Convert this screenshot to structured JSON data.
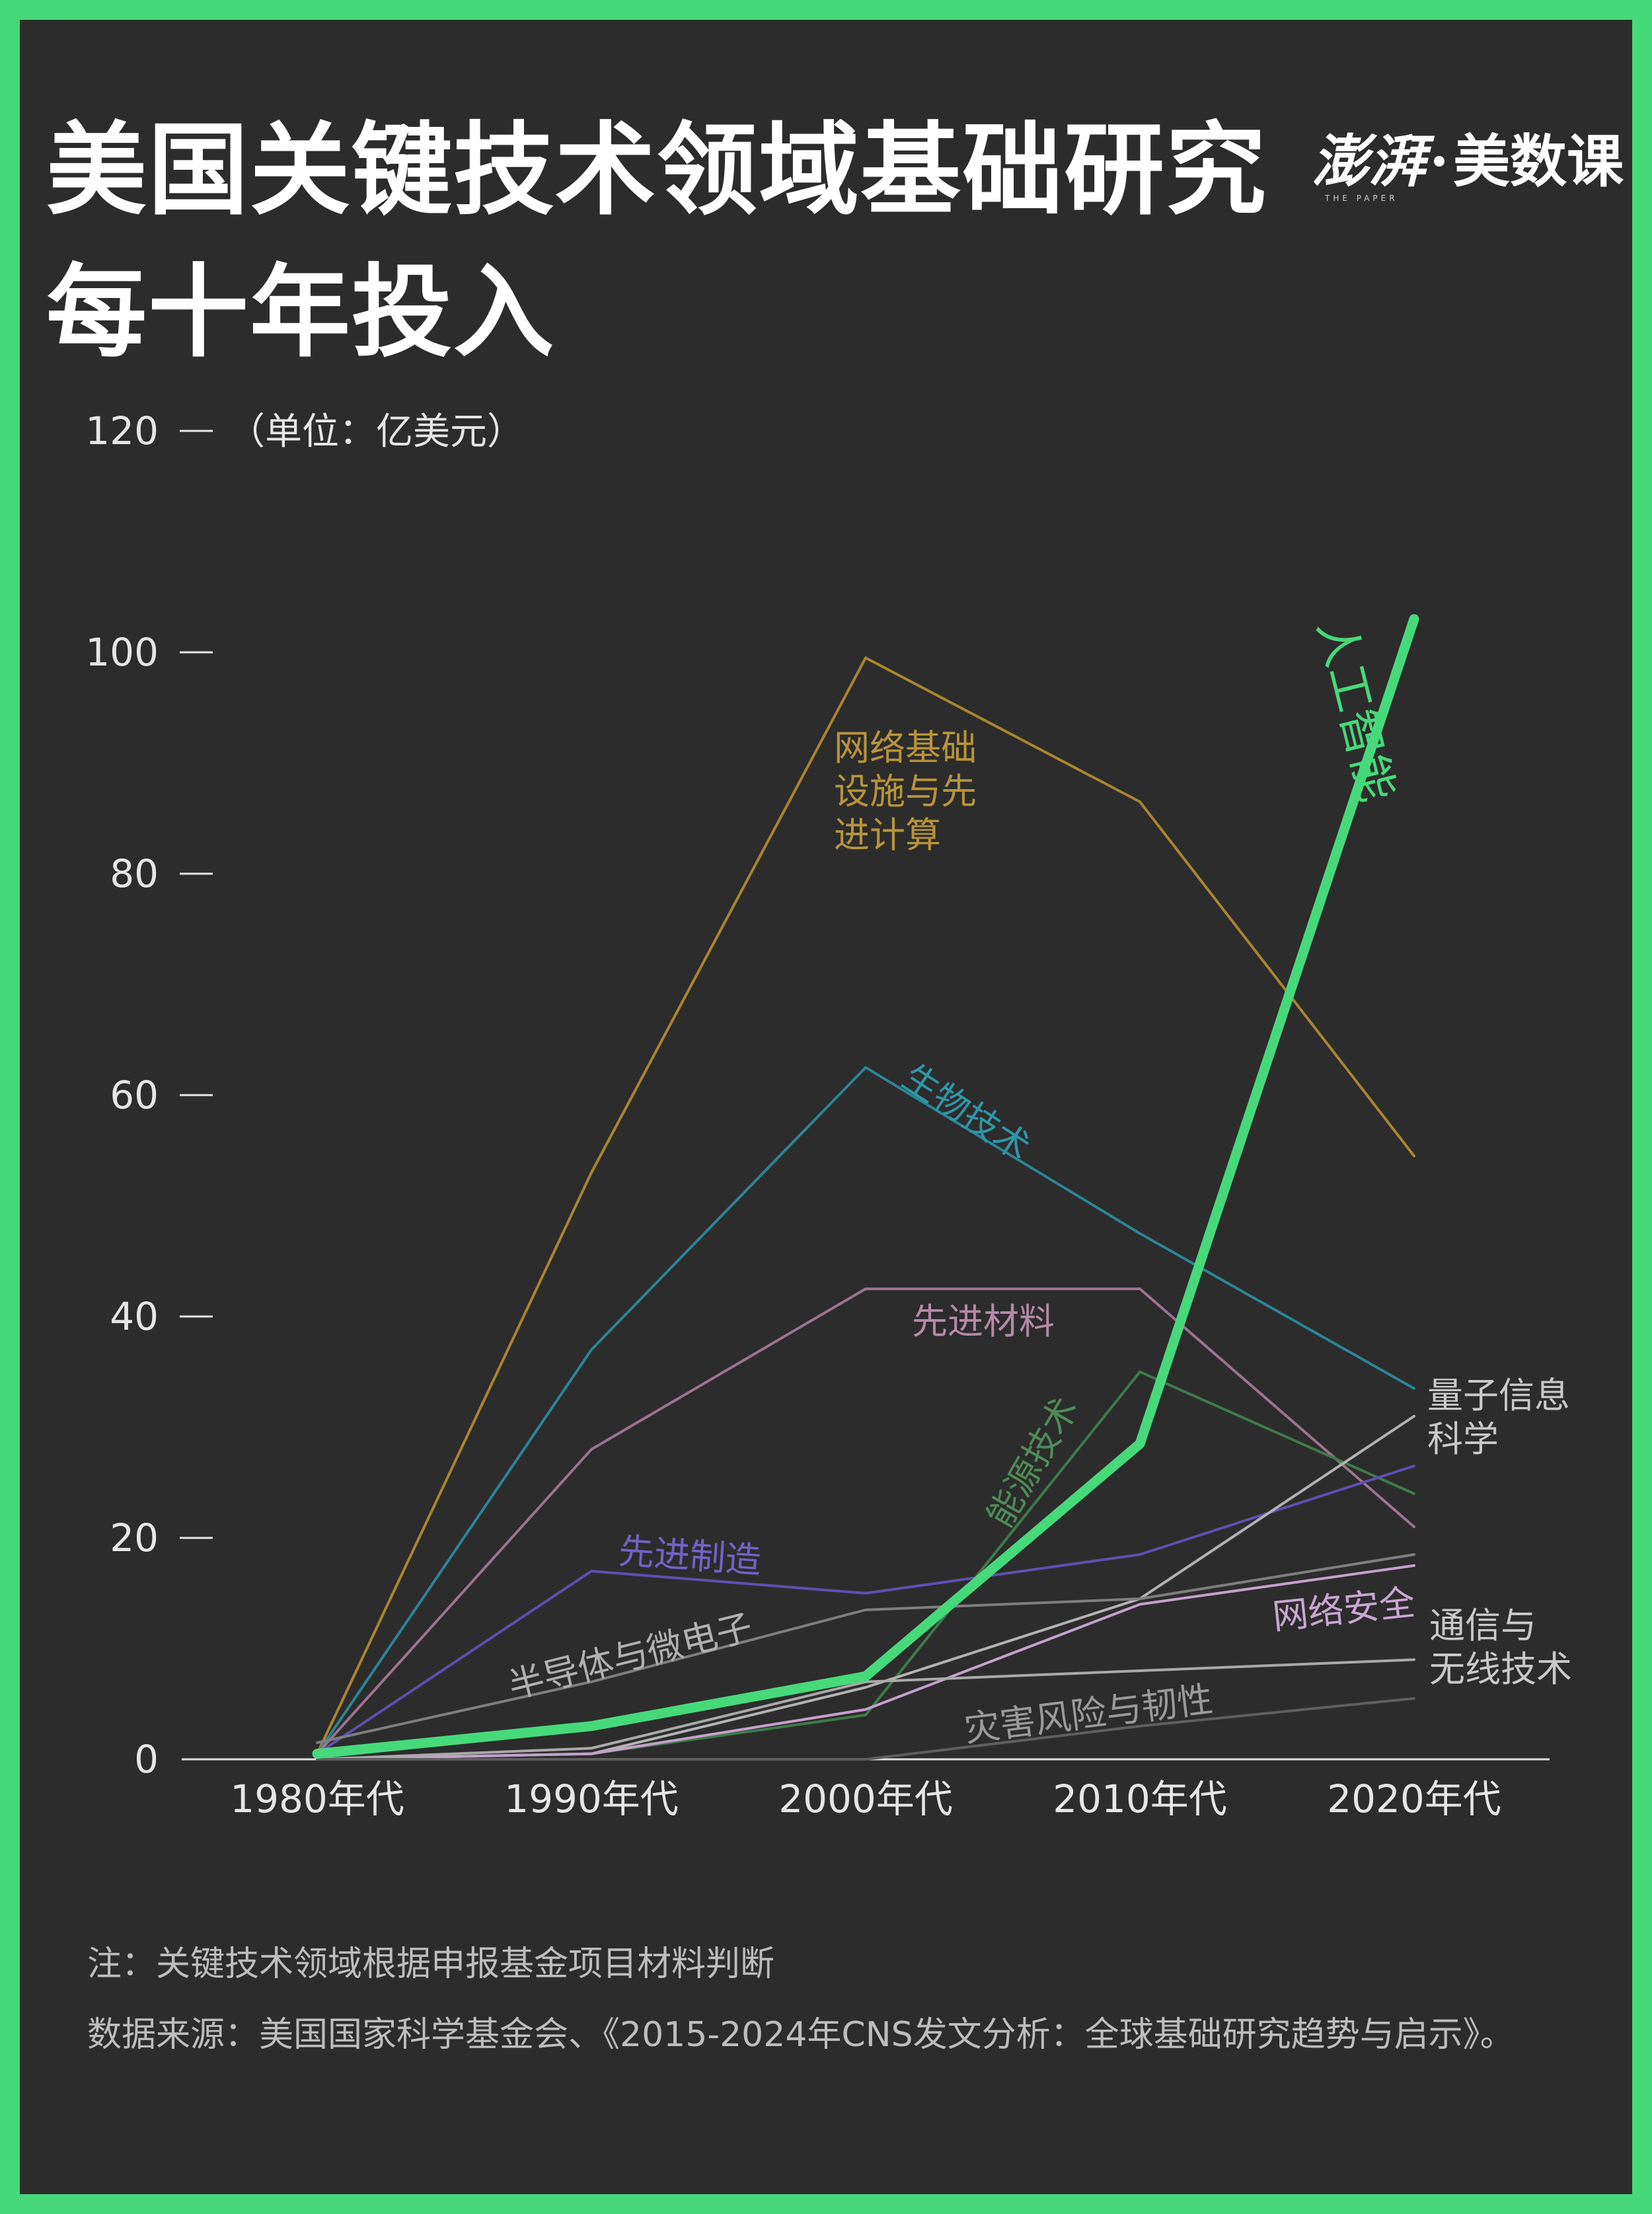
{
  "title_lines": [
    "美国关键技术领域基础研究",
    "每十年投入"
  ],
  "logo": {
    "main": "澎湃",
    "separator": "·",
    "sub": "美数课",
    "en": "THE PAPER"
  },
  "notes": {
    "note": "注：关键技术领域根据申报基金项目材料判断",
    "source": "数据来源：美国国家科学基金会、《2015-2024年CNS发文分析：全球基础研究趋势与启示》。"
  },
  "colors": {
    "background": "#2c2c2c",
    "border": "#46d97a",
    "text": "#ffffff",
    "axis": "#d9d9d9"
  },
  "chart_data": {
    "type": "line",
    "title": "美国关键技术领域基础研究每十年投入",
    "unit_label": "（单位：亿美元）",
    "categories": [
      "1980年代",
      "1990年代",
      "2000年代",
      "2010年代",
      "2020年代"
    ],
    "ylim": [
      0,
      120
    ],
    "yticks": [
      0,
      20,
      40,
      60,
      80,
      100,
      120
    ],
    "grid": false,
    "series": [
      {
        "name": "网络基础设施与先进计算",
        "label_lines": [
          "网络基础",
          "设施与先",
          "进计算"
        ],
        "color": "#a8862e",
        "width": 4,
        "values": [
          0.5,
          53,
          99.5,
          86.5,
          54.5
        ]
      },
      {
        "name": "生物技术",
        "label_lines": [
          "生物技术"
        ],
        "color": "#2a8595",
        "width": 4,
        "values": [
          0.5,
          37,
          62.5,
          47.5,
          33.5
        ]
      },
      {
        "name": "先进材料",
        "label_lines": [
          "先进材料"
        ],
        "color": "#9c7391",
        "width": 4,
        "values": [
          0.5,
          28,
          42.5,
          42.5,
          21
        ]
      },
      {
        "name": "能源技术",
        "label_lines": [
          "能源技术"
        ],
        "color": "#3f7a4a",
        "width": 4,
        "values": [
          0,
          0.5,
          4,
          35,
          24
        ]
      },
      {
        "name": "先进制造",
        "label_lines": [
          "先进制造"
        ],
        "color": "#5e4fb0",
        "width": 4,
        "values": [
          0.5,
          17,
          15,
          18.5,
          26.5
        ]
      },
      {
        "name": "量子信息科学",
        "label_lines": [
          "量子信息",
          "科学"
        ],
        "color": "#b3b3b3",
        "width": 4,
        "values": [
          0,
          0.5,
          6.5,
          14.5,
          31
        ]
      },
      {
        "name": "半导体与微电子",
        "label_lines": [
          "半导体与微电子"
        ],
        "color": "#7e7e7e",
        "width": 4,
        "values": [
          1.5,
          7,
          13.5,
          14.5,
          18.5
        ]
      },
      {
        "name": "网络安全",
        "label_lines": [
          "网络安全"
        ],
        "color": "#c4a1cb",
        "width": 4,
        "values": [
          0,
          0.5,
          4.5,
          14,
          17.5
        ]
      },
      {
        "name": "通信与无线技术",
        "label_lines": [
          "通信与",
          "无线技术"
        ],
        "color": "#a9a9a9",
        "width": 4,
        "values": [
          0,
          1,
          7,
          8,
          9
        ]
      },
      {
        "name": "灾害风险与韧性",
        "label_lines": [
          "灾害风险与韧性"
        ],
        "color": "#5f5f5f",
        "width": 4,
        "values": [
          0,
          0,
          0,
          3,
          5.5
        ]
      },
      {
        "name": "人工智能",
        "label_lines": [
          "人工智能"
        ],
        "color": "#46d97a",
        "width": 15,
        "values": [
          0.5,
          3,
          7.5,
          28.5,
          103
        ]
      }
    ]
  }
}
